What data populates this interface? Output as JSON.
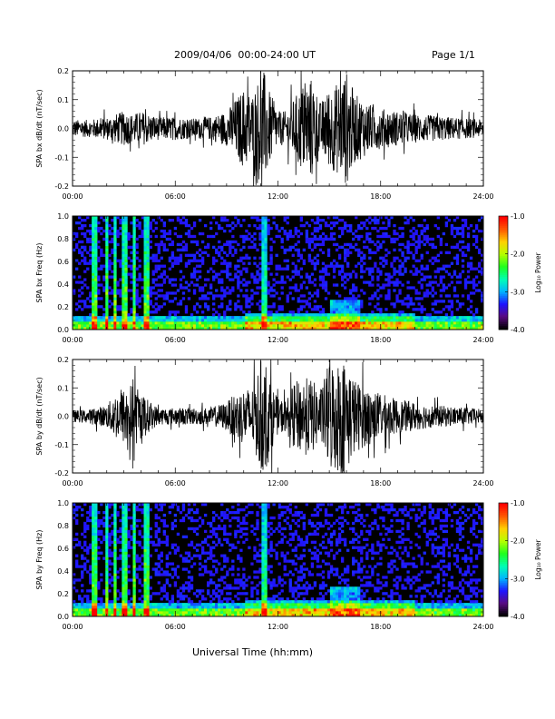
{
  "header": {
    "title": "2009/04/06  00:00-24:00 UT",
    "page": "Page 1/1"
  },
  "x_axis_label": "Universal Time (hh:mm)",
  "colorbar": {
    "label": "Log₁₀ Power",
    "ticks": [
      "-1.0",
      "-2.0",
      "-3.0",
      "-4.0"
    ],
    "range": [
      -4.0,
      -1.0
    ],
    "colors": [
      "#000000",
      "#5a0a82",
      "#1e14ff",
      "#00b4ff",
      "#00ffb4",
      "#1eff1e",
      "#b4ff00",
      "#ffd200",
      "#ff5a00",
      "#ff0000"
    ]
  },
  "chart_data": [
    {
      "type": "line",
      "ylabel": "SPA bx dB/dt (nT/sec)",
      "xlim": [
        0,
        24
      ],
      "ylim": [
        -0.2,
        0.2
      ],
      "x_ticks": [
        "00:00",
        "06:00",
        "12:00",
        "18:00",
        "24:00"
      ],
      "y_ticks": [
        "0.2",
        "0.1",
        "0.0",
        "-0.1",
        "-0.2"
      ],
      "series": [
        {
          "x": [
            0,
            1,
            2,
            3,
            3.5,
            4,
            5,
            6,
            7,
            8,
            9,
            9.5,
            10,
            10.5,
            11,
            11.2,
            11.5,
            12,
            12.5,
            13,
            13.5,
            14,
            14.5,
            15,
            15.5,
            16,
            16.5,
            17,
            17.5,
            18,
            19,
            20,
            21,
            22,
            23,
            24
          ],
          "envelope": [
            0.03,
            0.03,
            0.04,
            0.06,
            0.05,
            0.06,
            0.04,
            0.04,
            0.035,
            0.04,
            0.06,
            0.1,
            0.14,
            0.12,
            0.2,
            0.2,
            0.13,
            0.06,
            0.06,
            0.11,
            0.16,
            0.18,
            0.09,
            0.14,
            0.16,
            0.2,
            0.12,
            0.1,
            0.08,
            0.07,
            0.06,
            0.05,
            0.045,
            0.04,
            0.035,
            0.03
          ]
        }
      ]
    },
    {
      "type": "heatmap",
      "ylabel": "SPA bx Freq (Hz)",
      "xlim": [
        0,
        24
      ],
      "ylim": [
        0.0,
        1.0
      ],
      "x_ticks": [
        "00:00",
        "06:00",
        "12:00",
        "18:00",
        "24:00"
      ],
      "y_ticks": [
        "1.0",
        "0.8",
        "0.6",
        "0.4",
        "0.2",
        "0.0"
      ],
      "vertical_bands_hours": [
        1.3,
        2.0,
        2.5,
        3.0,
        3.6,
        4.3,
        11.2
      ],
      "enhanced_region": {
        "x": [
          12,
          18
        ],
        "freq_max": 0.15
      }
    },
    {
      "type": "line",
      "ylabel": "SPA by dB/dt (nT/sec)",
      "xlim": [
        0,
        24
      ],
      "ylim": [
        -0.2,
        0.2
      ],
      "x_ticks": [
        "00:00",
        "06:00",
        "12:00",
        "18:00",
        "24:00"
      ],
      "y_ticks": [
        "0.2",
        "0.1",
        "0.0",
        "-0.1",
        "-0.2"
      ],
      "series": [
        {
          "x": [
            0,
            1,
            2,
            2.5,
            3,
            3.5,
            4,
            5,
            6,
            7,
            8,
            9,
            9.5,
            10,
            10.5,
            11,
            11.3,
            11.6,
            12,
            12.5,
            13,
            13.5,
            14,
            14.5,
            15,
            15.5,
            16,
            16.5,
            17,
            18,
            19,
            20,
            21,
            22,
            23,
            24
          ],
          "envelope": [
            0.02,
            0.025,
            0.04,
            0.08,
            0.1,
            0.12,
            0.08,
            0.03,
            0.03,
            0.03,
            0.03,
            0.05,
            0.08,
            0.1,
            0.1,
            0.2,
            0.2,
            0.12,
            0.06,
            0.06,
            0.12,
            0.14,
            0.13,
            0.09,
            0.2,
            0.2,
            0.2,
            0.13,
            0.11,
            0.08,
            0.06,
            0.05,
            0.04,
            0.035,
            0.03,
            0.025
          ]
        }
      ]
    },
    {
      "type": "heatmap",
      "ylabel": "SPA by Freq (Hz)",
      "xlim": [
        0,
        24
      ],
      "ylim": [
        0.0,
        1.0
      ],
      "x_ticks": [
        "00:00",
        "06:00",
        "12:00",
        "18:00",
        "24:00"
      ],
      "y_ticks": [
        "1.0",
        "0.8",
        "0.6",
        "0.4",
        "0.2",
        "0.0"
      ],
      "vertical_bands_hours": [
        1.3,
        2.0,
        2.5,
        3.0,
        3.6,
        4.3,
        11.2
      ],
      "enhanced_region": {
        "x": [
          12,
          18
        ],
        "freq_max": 0.15
      }
    }
  ]
}
